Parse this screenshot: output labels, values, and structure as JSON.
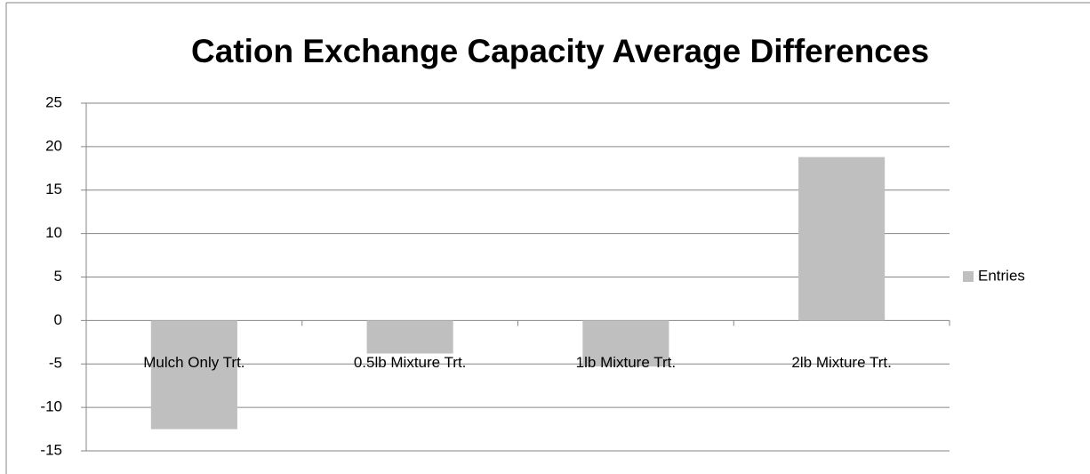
{
  "chart_data": {
    "type": "bar",
    "title": "Cation Exchange Capacity Average Differences",
    "categories": [
      "Mulch Only Trt.",
      "0.5lb Mixture Trt.",
      "1lb Mixture Trt.",
      "2lb Mixture Trt."
    ],
    "series": [
      {
        "name": "Entries",
        "color": "#bfbfbf",
        "values": [
          -12.5,
          -3.8,
          -5.3,
          18.8
        ]
      }
    ],
    "ylim": [
      -15,
      25
    ],
    "yticks": [
      -15,
      -10,
      -5,
      0,
      5,
      10,
      15,
      20,
      25
    ],
    "grid": true,
    "legend": "right"
  }
}
